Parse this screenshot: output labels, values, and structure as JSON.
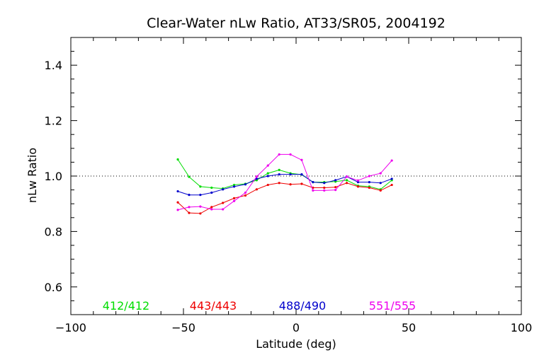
{
  "chart_data": {
    "type": "line",
    "title": "Clear-Water nLw Ratio, AT33/SR05, 2004192",
    "xlabel": "Latitude (deg)",
    "ylabel": "nLw Ratio",
    "xlim": [
      -100,
      100
    ],
    "ylim": [
      0.5,
      1.5
    ],
    "xticks": [
      -100,
      -50,
      0,
      50,
      100
    ],
    "xtick_labels": [
      "−100",
      "−50",
      "0",
      "50",
      "100"
    ],
    "yticks": [
      0.6,
      0.8,
      1.0,
      1.2,
      1.4
    ],
    "ytick_labels": [
      "0.6",
      "0.8",
      "1.0",
      "1.2",
      "1.4"
    ],
    "reference_line": 1.0,
    "grid": false,
    "legend_placement": "bottom inside plot",
    "x": [
      -52.5,
      -47.5,
      -42.5,
      -37.5,
      -32.5,
      -27.5,
      -22.5,
      -17.5,
      -12.5,
      -7.5,
      -2.5,
      2.5,
      7.5,
      12.5,
      17.5,
      22.5,
      27.5,
      32.5,
      37.5,
      42.5
    ],
    "series": [
      {
        "name": "412/412",
        "color": "#00dd00",
        "values": [
          1.06,
          0.997,
          0.962,
          0.958,
          0.955,
          0.968,
          0.972,
          0.985,
          1.01,
          1.022,
          1.01,
          1.005,
          0.978,
          0.978,
          0.98,
          0.985,
          0.965,
          0.962,
          0.952,
          0.985
        ]
      },
      {
        "name": "443/443",
        "color": "#ee0000",
        "values": [
          0.905,
          0.867,
          0.865,
          0.888,
          0.903,
          0.92,
          0.93,
          0.952,
          0.968,
          0.975,
          0.97,
          0.972,
          0.958,
          0.958,
          0.96,
          0.975,
          0.962,
          0.958,
          0.948,
          0.968
        ]
      },
      {
        "name": "488/490",
        "color": "#0000cc",
        "values": [
          0.945,
          0.932,
          0.932,
          0.94,
          0.952,
          0.962,
          0.97,
          0.99,
          1.0,
          1.006,
          1.006,
          1.006,
          0.978,
          0.975,
          0.985,
          0.998,
          0.978,
          0.978,
          0.975,
          0.99
        ]
      },
      {
        "name": "551/555",
        "color": "#ee00ee",
        "values": [
          0.878,
          0.888,
          0.89,
          0.88,
          0.88,
          0.91,
          0.94,
          0.998,
          1.038,
          1.078,
          1.078,
          1.058,
          0.948,
          0.948,
          0.95,
          0.998,
          0.984,
          1.0,
          1.01,
          1.056
        ]
      }
    ]
  }
}
